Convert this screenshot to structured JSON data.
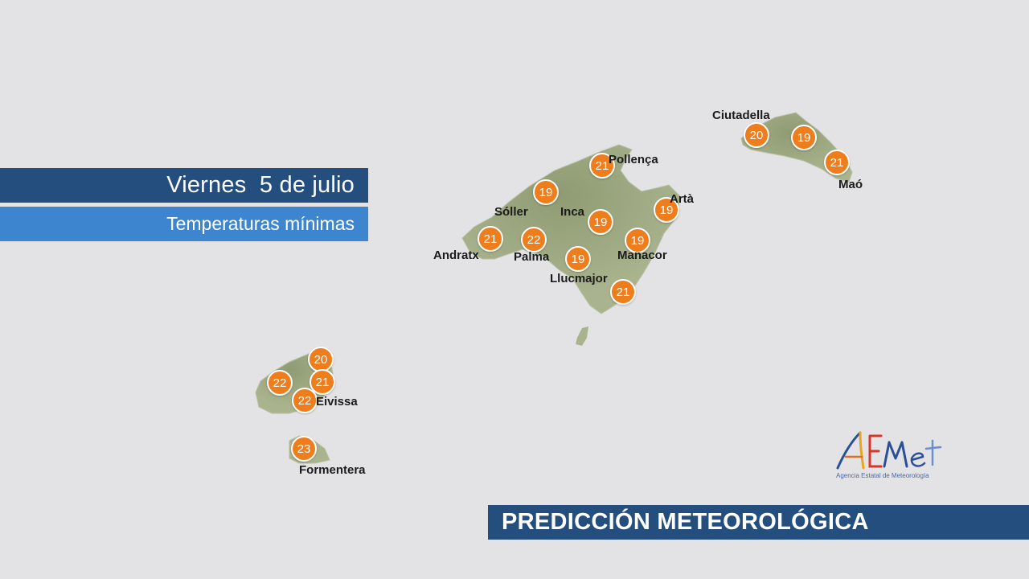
{
  "header": {
    "date": "Viernes  5 de julio",
    "subtitle": "Temperaturas mínimas"
  },
  "footer": {
    "title": "PREDICCIÓN METEOROLÓGICA"
  },
  "logo": {
    "name": "AEMet",
    "subtitle": "Agencia Estatal de Meteorología"
  },
  "cities": {
    "ciutadella": "Ciutadella",
    "mao": "Maó",
    "pollenca": "Pollença",
    "arta": "Artà",
    "soller": "Sóller",
    "inca": "Inca",
    "andratx": "Andratx",
    "palma": "Palma",
    "manacor": "Manacor",
    "llucmajor": "Llucmajor",
    "eivissa": "Eivissa",
    "formentera": "Formentera"
  },
  "temps": {
    "ciutadella": "20",
    "menorca_center": "19",
    "mao": "21",
    "pollenca": "21",
    "arta": "19",
    "soller": "19",
    "inca": "19",
    "andratx": "21",
    "palma": "22",
    "manacor": "19",
    "llucmajor": "19",
    "south_mallorca": "21",
    "ibiza_north": "20",
    "ibiza_west": "22",
    "ibiza_east": "21",
    "eivissa": "22",
    "formentera": "23"
  },
  "colors": {
    "marker": "#ee7d1e",
    "banner_dark": "#234e7d",
    "banner_light": "#3d86cf",
    "land": "#a9b48f",
    "background": "#e3e2e4"
  }
}
